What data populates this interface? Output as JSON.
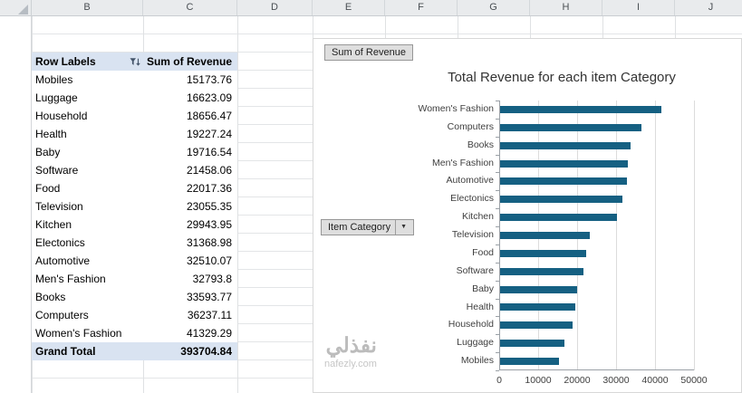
{
  "spreadsheet": {
    "column_headers": [
      "B",
      "C",
      "D",
      "E",
      "F",
      "G",
      "H",
      "I",
      "J"
    ]
  },
  "pivot_table": {
    "headers": {
      "row_labels": "Row Labels",
      "value": "Sum of Revenue"
    },
    "rows": [
      {
        "label": "Mobiles",
        "value": "15173.76"
      },
      {
        "label": "Luggage",
        "value": "16623.09"
      },
      {
        "label": "Household",
        "value": "18656.47"
      },
      {
        "label": "Health",
        "value": "19227.24"
      },
      {
        "label": "Baby",
        "value": "19716.54"
      },
      {
        "label": "Software",
        "value": "21458.06"
      },
      {
        "label": "Food",
        "value": "22017.36"
      },
      {
        "label": "Television",
        "value": "23055.35"
      },
      {
        "label": "Kitchen",
        "value": "29943.95"
      },
      {
        "label": "Electonics",
        "value": "31368.98"
      },
      {
        "label": "Automotive",
        "value": "32510.07"
      },
      {
        "label": "Men's Fashion",
        "value": "32793.8"
      },
      {
        "label": "Books",
        "value": "33593.77"
      },
      {
        "label": "Computers",
        "value": "36237.11"
      },
      {
        "label": "Women's Fashion",
        "value": "41329.29"
      }
    ],
    "grand_total": {
      "label": "Grand Total",
      "value": "393704.84"
    }
  },
  "chart_buttons": {
    "value_field": "Sum of Revenue",
    "category_field": "Item Category"
  },
  "chart_data": {
    "type": "bar",
    "orientation": "horizontal",
    "title": "Total Revenue for each item Category",
    "categories": [
      "Women's Fashion",
      "Computers",
      "Books",
      "Men's Fashion",
      "Automotive",
      "Electonics",
      "Kitchen",
      "Television",
      "Food",
      "Software",
      "Baby",
      "Health",
      "Household",
      "Luggage",
      "Mobiles"
    ],
    "values": [
      41329.29,
      36237.11,
      33593.77,
      32793.8,
      32510.07,
      31368.98,
      29943.95,
      23055.35,
      22017.36,
      21458.06,
      19716.54,
      19227.24,
      18656.47,
      16623.09,
      15173.76
    ],
    "xlabel": "",
    "ylabel": "",
    "xlim": [
      0,
      50000
    ],
    "x_ticks": [
      0,
      10000,
      20000,
      30000,
      40000,
      50000
    ],
    "bar_color": "#156082",
    "grid": true,
    "legend": false
  },
  "watermark": {
    "arabic": "نفذلي",
    "domain": "nafezly.com"
  }
}
